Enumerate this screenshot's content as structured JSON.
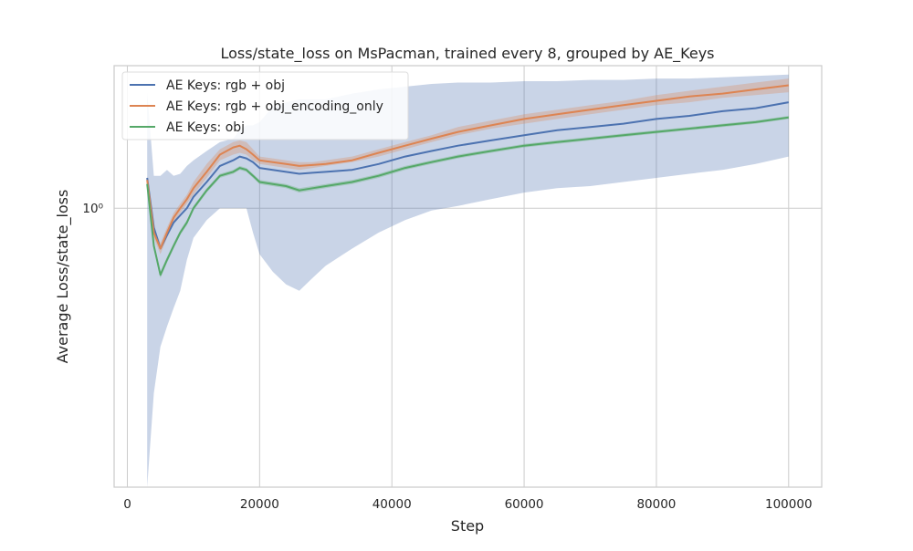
{
  "chart_data": {
    "type": "line",
    "title": "Loss/state_loss on MsPacman, trained every 8, grouped by AE_Keys",
    "xlabel": "Step",
    "ylabel": "Average Loss/state_loss",
    "xlim": [
      -2000,
      105000
    ],
    "ylim": [
      0.3,
      1.85
    ],
    "yscale": "log",
    "x_ticks": [
      0,
      20000,
      40000,
      60000,
      80000,
      100000
    ],
    "x_tick_labels": [
      "0",
      "20000",
      "40000",
      "60000",
      "80000",
      "100000"
    ],
    "y_ticks": [
      1.0
    ],
    "y_tick_labels": [
      "10⁰"
    ],
    "grid": true,
    "legend_position": "upper-left",
    "series": [
      {
        "name": "AE Keys: rgb + obj",
        "color": "#4c72b0",
        "x": [
          3000,
          4000,
          5000,
          6000,
          7000,
          8000,
          9000,
          10000,
          12000,
          14000,
          16000,
          17000,
          18000,
          19000,
          20000,
          22000,
          24000,
          26000,
          28000,
          30000,
          34000,
          38000,
          42000,
          46000,
          50000,
          55000,
          60000,
          65000,
          70000,
          75000,
          80000,
          85000,
          90000,
          95000,
          100000
        ],
        "values": [
          1.14,
          0.92,
          0.84,
          0.89,
          0.94,
          0.97,
          1.0,
          1.05,
          1.12,
          1.2,
          1.23,
          1.25,
          1.24,
          1.22,
          1.19,
          1.18,
          1.17,
          1.16,
          1.165,
          1.17,
          1.18,
          1.21,
          1.25,
          1.28,
          1.31,
          1.34,
          1.37,
          1.4,
          1.42,
          1.44,
          1.47,
          1.49,
          1.52,
          1.54,
          1.58
        ],
        "band_lower": [
          0.2,
          0.45,
          0.55,
          0.6,
          0.65,
          0.7,
          0.8,
          0.88,
          0.95,
          1.0,
          1.0,
          1.0,
          1.0,
          0.9,
          0.82,
          0.76,
          0.72,
          0.7,
          0.74,
          0.78,
          0.84,
          0.9,
          0.95,
          0.99,
          1.01,
          1.04,
          1.07,
          1.09,
          1.1,
          1.12,
          1.14,
          1.16,
          1.18,
          1.21,
          1.25
        ],
        "band_upper": [
          1.65,
          1.15,
          1.15,
          1.18,
          1.15,
          1.16,
          1.2,
          1.23,
          1.28,
          1.33,
          1.35,
          1.4,
          1.43,
          1.43,
          1.45,
          1.55,
          1.58,
          1.6,
          1.6,
          1.6,
          1.64,
          1.67,
          1.69,
          1.71,
          1.72,
          1.72,
          1.73,
          1.73,
          1.74,
          1.74,
          1.75,
          1.75,
          1.76,
          1.77,
          1.78
        ]
      },
      {
        "name": "AE Keys: rgb + obj_encoding_only",
        "color": "#dd8452",
        "x": [
          3000,
          4000,
          5000,
          6000,
          7000,
          8000,
          9000,
          10000,
          12000,
          14000,
          16000,
          17000,
          18000,
          19000,
          20000,
          22000,
          24000,
          26000,
          28000,
          30000,
          34000,
          38000,
          42000,
          46000,
          50000,
          55000,
          60000,
          65000,
          70000,
          75000,
          80000,
          85000,
          90000,
          95000,
          100000
        ],
        "values": [
          1.13,
          0.9,
          0.84,
          0.9,
          0.96,
          1.0,
          1.04,
          1.09,
          1.17,
          1.26,
          1.3,
          1.31,
          1.29,
          1.26,
          1.23,
          1.22,
          1.21,
          1.2,
          1.205,
          1.21,
          1.23,
          1.27,
          1.31,
          1.35,
          1.39,
          1.43,
          1.47,
          1.5,
          1.53,
          1.56,
          1.59,
          1.62,
          1.64,
          1.67,
          1.7
        ],
        "band_lower": [
          1.11,
          0.88,
          0.82,
          0.88,
          0.94,
          0.98,
          1.02,
          1.06,
          1.14,
          1.23,
          1.26,
          1.27,
          1.26,
          1.23,
          1.21,
          1.2,
          1.19,
          1.18,
          1.19,
          1.2,
          1.22,
          1.25,
          1.29,
          1.33,
          1.37,
          1.41,
          1.44,
          1.47,
          1.5,
          1.53,
          1.56,
          1.58,
          1.61,
          1.63,
          1.65
        ],
        "band_upper": [
          1.15,
          0.92,
          0.86,
          0.92,
          0.98,
          1.02,
          1.06,
          1.12,
          1.21,
          1.29,
          1.33,
          1.34,
          1.33,
          1.29,
          1.25,
          1.24,
          1.23,
          1.22,
          1.22,
          1.23,
          1.25,
          1.29,
          1.33,
          1.37,
          1.42,
          1.46,
          1.5,
          1.53,
          1.56,
          1.59,
          1.63,
          1.66,
          1.69,
          1.72,
          1.75
        ]
      },
      {
        "name": "AE Keys: obj",
        "color": "#55a868",
        "x": [
          3000,
          4000,
          5000,
          6000,
          7000,
          8000,
          9000,
          10000,
          12000,
          14000,
          16000,
          17000,
          18000,
          19000,
          20000,
          22000,
          24000,
          26000,
          28000,
          30000,
          34000,
          38000,
          42000,
          46000,
          50000,
          55000,
          60000,
          65000,
          70000,
          75000,
          80000,
          85000,
          90000,
          95000,
          100000
        ],
        "values": [
          1.11,
          0.85,
          0.75,
          0.8,
          0.85,
          0.9,
          0.94,
          1.0,
          1.08,
          1.15,
          1.17,
          1.19,
          1.18,
          1.15,
          1.12,
          1.11,
          1.1,
          1.08,
          1.09,
          1.1,
          1.12,
          1.15,
          1.19,
          1.22,
          1.25,
          1.28,
          1.31,
          1.33,
          1.35,
          1.37,
          1.39,
          1.41,
          1.43,
          1.45,
          1.48
        ],
        "band_lower": [
          1.1,
          0.84,
          0.74,
          0.79,
          0.84,
          0.89,
          0.93,
          0.99,
          1.07,
          1.14,
          1.16,
          1.18,
          1.17,
          1.14,
          1.11,
          1.1,
          1.09,
          1.07,
          1.08,
          1.09,
          1.11,
          1.14,
          1.18,
          1.21,
          1.24,
          1.27,
          1.3,
          1.32,
          1.34,
          1.36,
          1.38,
          1.4,
          1.42,
          1.44,
          1.47
        ],
        "band_upper": [
          1.12,
          0.86,
          0.76,
          0.81,
          0.86,
          0.91,
          0.95,
          1.01,
          1.09,
          1.16,
          1.18,
          1.2,
          1.19,
          1.16,
          1.13,
          1.12,
          1.11,
          1.09,
          1.1,
          1.11,
          1.13,
          1.16,
          1.2,
          1.23,
          1.26,
          1.29,
          1.32,
          1.34,
          1.36,
          1.38,
          1.4,
          1.42,
          1.44,
          1.46,
          1.49
        ]
      }
    ]
  }
}
